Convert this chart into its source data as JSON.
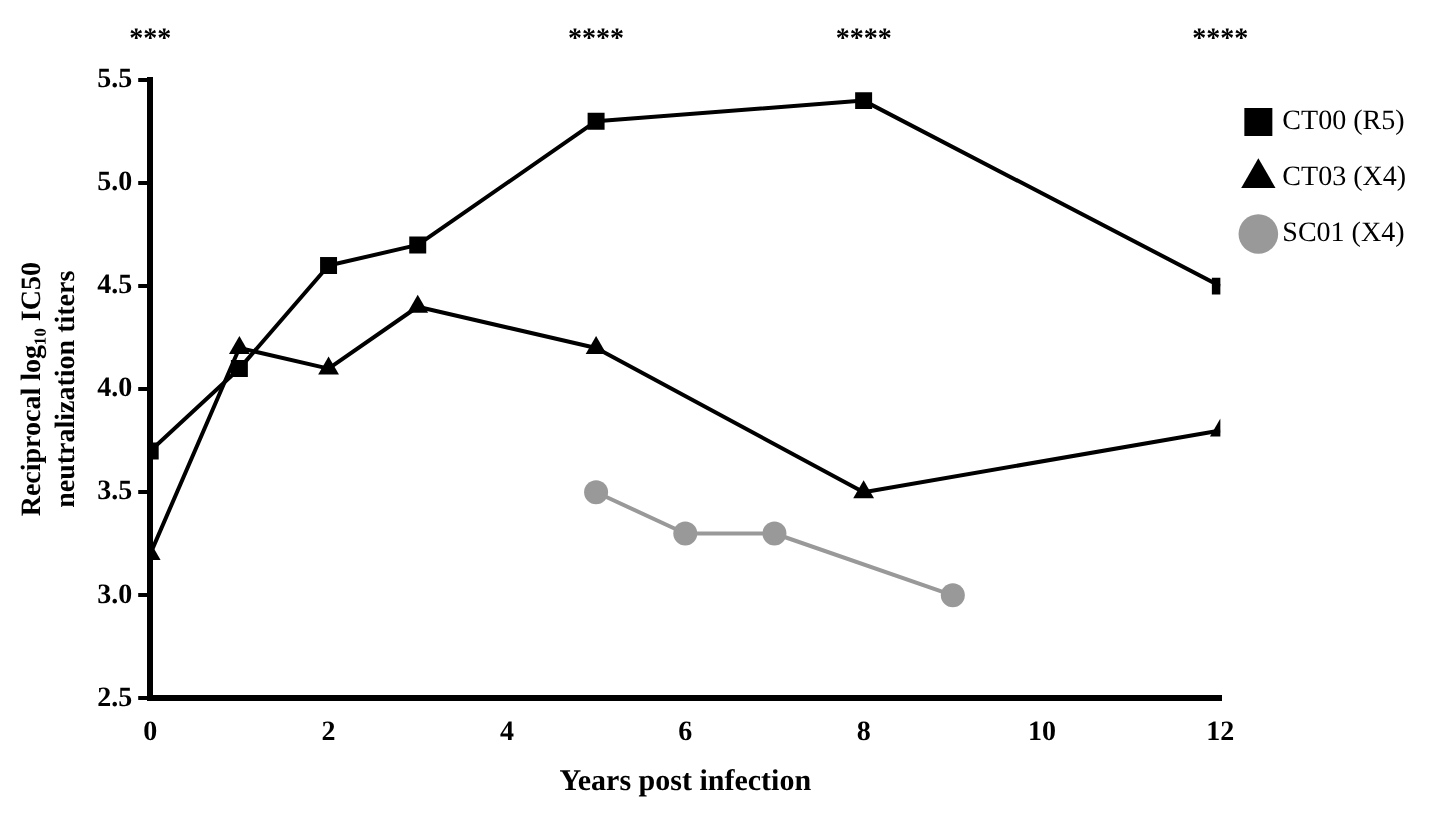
{
  "chart_data": {
    "type": "line",
    "xlabel": "Years post infection",
    "ylabel": "Reciprocal log₁₀ IC50 neutralization titers",
    "series": [
      {
        "name": "CT00 (R5)",
        "color": "#000000",
        "marker": "square",
        "x": [
          0,
          1,
          2,
          3,
          5,
          8,
          12
        ],
        "values": [
          3.7,
          4.1,
          4.6,
          4.7,
          5.3,
          5.4,
          4.5
        ]
      },
      {
        "name": "CT03 (X4)",
        "color": "#000000",
        "marker": "triangle",
        "x": [
          0,
          1,
          2,
          3,
          5,
          8,
          12
        ],
        "values": [
          3.2,
          4.2,
          4.1,
          4.4,
          4.2,
          3.5,
          3.8
        ]
      },
      {
        "name": "SC01 (X4)",
        "color": "#999999",
        "marker": "circle",
        "x": [
          5,
          6,
          7,
          9
        ],
        "values": [
          3.5,
          3.3,
          3.3,
          3.0
        ]
      }
    ],
    "xlim": [
      0,
      12
    ],
    "xticks": [
      0,
      2,
      4,
      6,
      8,
      10,
      12
    ],
    "ylim": [
      2.5,
      5.5
    ],
    "yticks": [
      {
        "value": 2.5,
        "label": "2.5"
      },
      {
        "value": 3,
        "label": "3.0"
      },
      {
        "value": 3.5,
        "label": "3.5"
      },
      {
        "value": 4,
        "label": "4.0"
      },
      {
        "value": 4.5,
        "label": "4.5"
      },
      {
        "value": 5,
        "label": "5.0"
      },
      {
        "value": 5.5,
        "label": "5.5"
      }
    ],
    "grid": false,
    "legend": "right",
    "line_style": "solid",
    "annotations": [
      "***",
      "****",
      "****",
      "****"
    ]
  }
}
